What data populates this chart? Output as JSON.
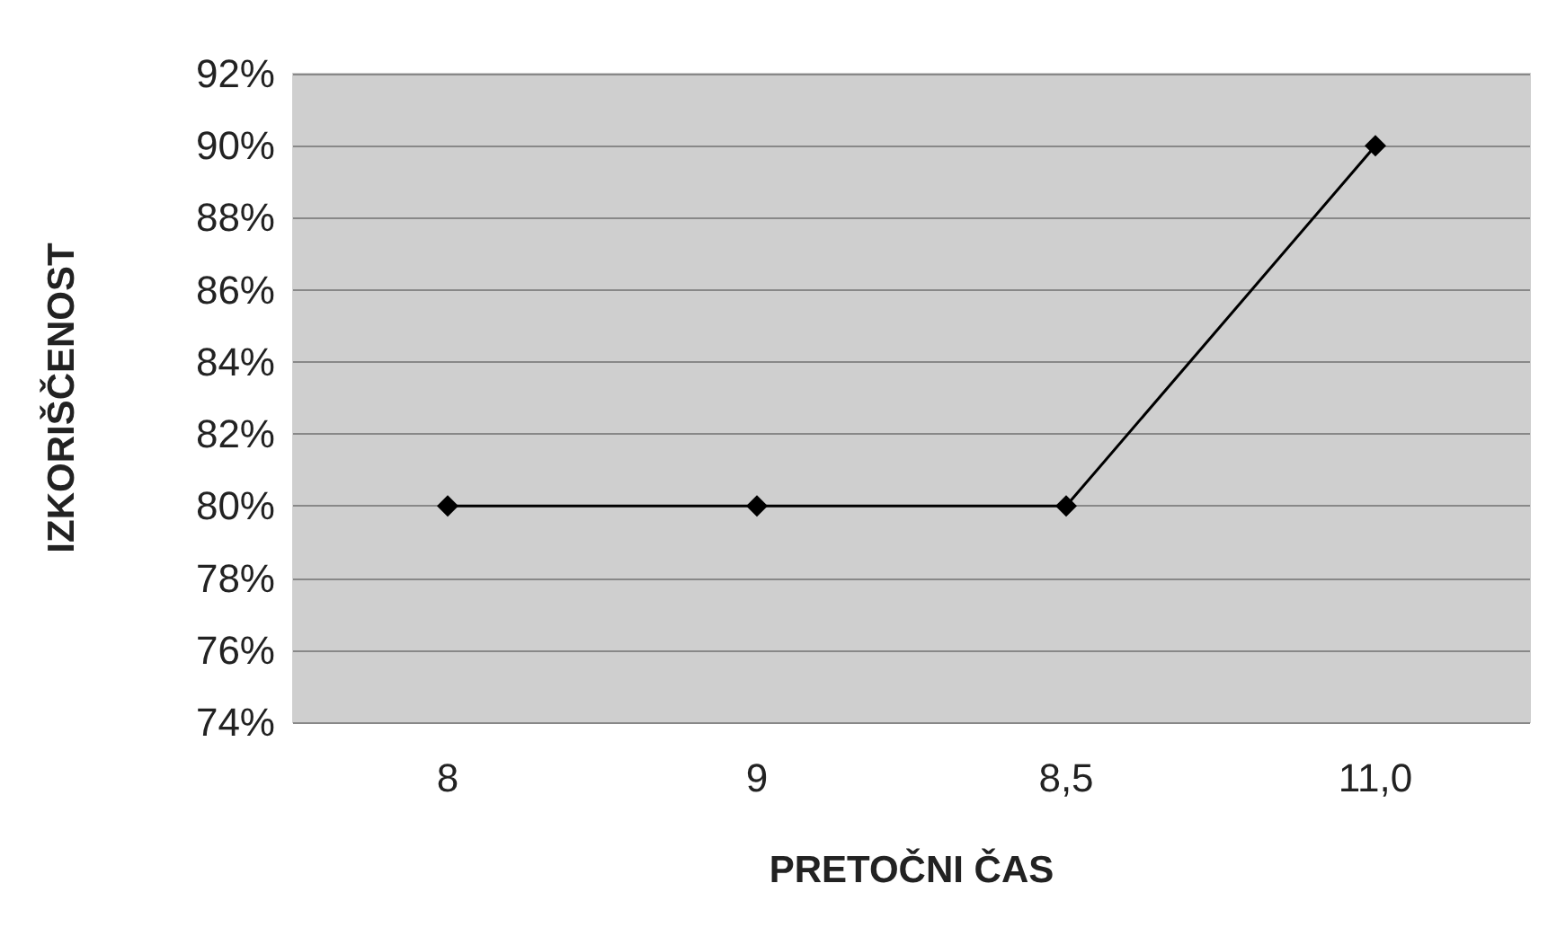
{
  "chart_data": {
    "type": "line",
    "xlabel": "PRETOČNI ČAS",
    "ylabel": "IZKORIŠČENOST",
    "categories": [
      "8",
      "9",
      "8,5",
      "11,0"
    ],
    "series": [
      {
        "color": "#000000",
        "values": [
          80,
          80,
          80,
          90
        ]
      }
    ],
    "ylim": [
      74,
      92
    ],
    "yticks": [
      {
        "value": 74,
        "label": "74%"
      },
      {
        "value": 76,
        "label": "76%"
      },
      {
        "value": 78,
        "label": "78%"
      },
      {
        "value": 80,
        "label": "80%"
      },
      {
        "value": 82,
        "label": "82%"
      },
      {
        "value": 84,
        "label": "84%"
      },
      {
        "value": 86,
        "label": "86%"
      },
      {
        "value": 88,
        "label": "88%"
      },
      {
        "value": 90,
        "label": "90%"
      },
      {
        "value": 92,
        "label": "92%"
      }
    ],
    "grid": "y",
    "marker": "diamond",
    "line_style": "solid"
  }
}
